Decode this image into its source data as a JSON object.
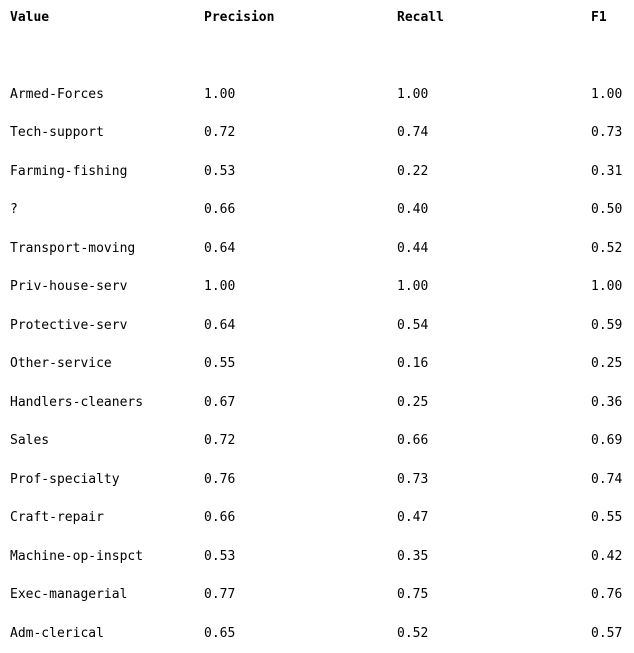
{
  "headers": {
    "value": "Value",
    "precision": "Precision",
    "recall": "Recall",
    "f1": "F1"
  },
  "rows": [
    {
      "value": "Armed-Forces",
      "precision": "1.00",
      "recall": "1.00",
      "f1": "1.00"
    },
    {
      "value": "Tech-support",
      "precision": "0.72",
      "recall": "0.74",
      "f1": "0.73"
    },
    {
      "value": "Farming-fishing",
      "precision": "0.53",
      "recall": "0.22",
      "f1": "0.31"
    },
    {
      "value": "?",
      "precision": "0.66",
      "recall": "0.40",
      "f1": "0.50"
    },
    {
      "value": "Transport-moving",
      "precision": "0.64",
      "recall": "0.44",
      "f1": "0.52"
    },
    {
      "value": "Priv-house-serv",
      "precision": "1.00",
      "recall": "1.00",
      "f1": "1.00"
    },
    {
      "value": "Protective-serv",
      "precision": "0.64",
      "recall": "0.54",
      "f1": "0.59"
    },
    {
      "value": "Other-service",
      "precision": "0.55",
      "recall": "0.16",
      "f1": "0.25"
    },
    {
      "value": "Handlers-cleaners",
      "precision": "0.67",
      "recall": "0.25",
      "f1": "0.36"
    },
    {
      "value": "Sales",
      "precision": "0.72",
      "recall": "0.66",
      "f1": "0.69"
    },
    {
      "value": "Prof-specialty",
      "precision": "0.76",
      "recall": "0.73",
      "f1": "0.74"
    },
    {
      "value": "Craft-repair",
      "precision": "0.66",
      "recall": "0.47",
      "f1": "0.55"
    },
    {
      "value": "Machine-op-inspct",
      "precision": "0.53",
      "recall": "0.35",
      "f1": "0.42"
    },
    {
      "value": "Exec-managerial",
      "precision": "0.77",
      "recall": "0.75",
      "f1": "0.76"
    },
    {
      "value": "Adm-clerical",
      "precision": "0.65",
      "recall": "0.52",
      "f1": "0.57"
    }
  ]
}
